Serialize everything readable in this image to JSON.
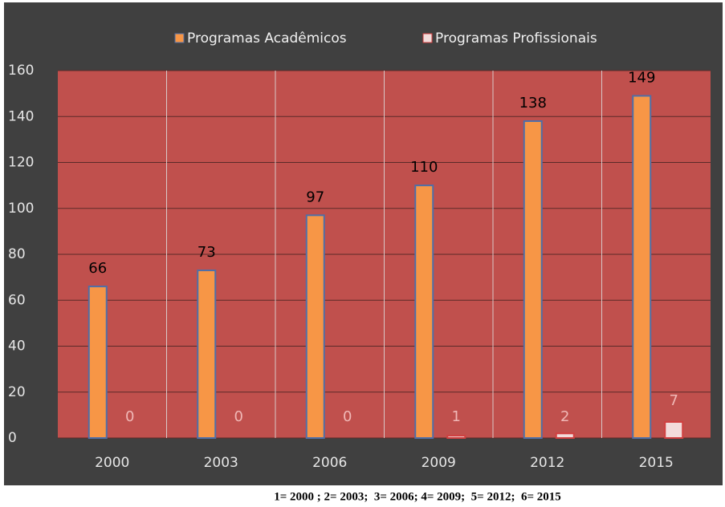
{
  "chart_data": {
    "type": "bar",
    "categories": [
      "2000",
      "2003",
      "2006",
      "2009",
      "2012",
      "2015"
    ],
    "series": [
      {
        "name": "Programas Acadêmicos",
        "color": "#f79646",
        "values": [
          66,
          73,
          97,
          110,
          138,
          149
        ]
      },
      {
        "name": "Programas Profissionais",
        "color": "#f2dcdb",
        "values": [
          0,
          0,
          0,
          1,
          2,
          7
        ]
      }
    ],
    "ylim": [
      0,
      160
    ],
    "yticks": [
      0,
      20,
      40,
      60,
      80,
      100,
      120,
      140,
      160
    ],
    "grid": true,
    "legend": "top",
    "caption": "1= 2000 ; 2= 2003;  3= 2006; 4= 2009;  5= 2012;  6= 2015"
  }
}
